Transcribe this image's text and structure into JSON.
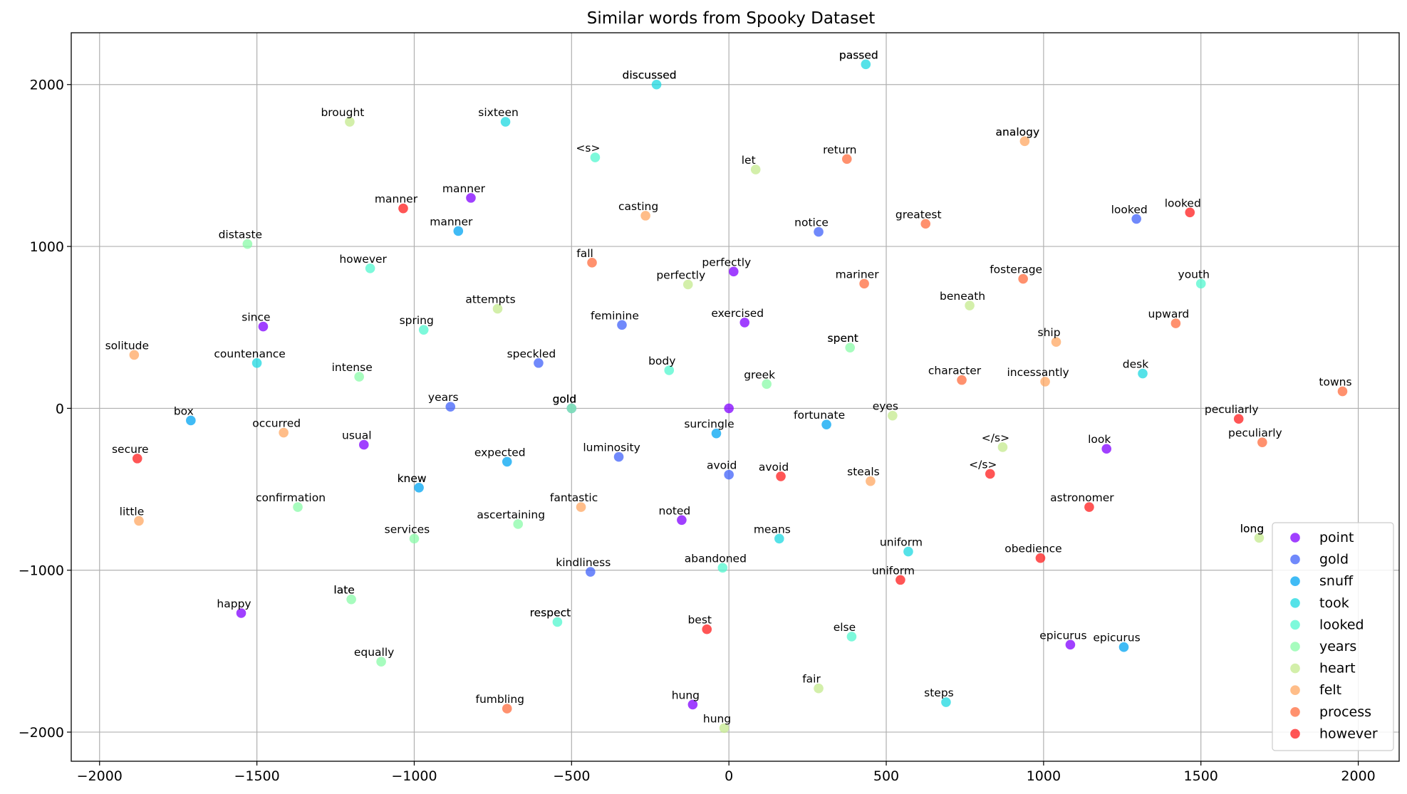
{
  "chart_data": {
    "type": "scatter",
    "title": "Similar words from Spooky Dataset",
    "xlabel": "",
    "ylabel": "",
    "xlim": [
      -2090,
      2130
    ],
    "ylim": [
      -2180,
      2320
    ],
    "xticks": [
      -2000,
      -1500,
      -1000,
      -500,
      0,
      500,
      1000,
      1500,
      2000
    ],
    "yticks": [
      2000,
      1000,
      0,
      -1000,
      -2000
    ],
    "tick_labels_x": [
      "−2000",
      "−1500",
      "−1000",
      "−500",
      "0",
      "500",
      "1000",
      "1500",
      "2000"
    ],
    "tick_labels_y": [
      "2000",
      "1000",
      "0",
      "−1000",
      "−2000"
    ],
    "grid": true,
    "legend": "bottom-right",
    "series": [
      {
        "name": "point",
        "color": "#8000ff",
        "label_color": "#777777",
        "points": [
          {
            "x": 0,
            "y": 0,
            "label": ""
          },
          {
            "x": -820,
            "y": 1300,
            "label": "manner"
          },
          {
            "x": 15,
            "y": 845,
            "label": "perfectly"
          },
          {
            "x": -1480,
            "y": 505,
            "label": "since"
          },
          {
            "x": 50,
            "y": 530,
            "label": "exercised"
          },
          {
            "x": -1160,
            "y": -225,
            "label": "usual"
          },
          {
            "x": 1200,
            "y": -250,
            "label": "look"
          },
          {
            "x": -150,
            "y": -690,
            "label": "noted"
          },
          {
            "x": -1550,
            "y": -1265,
            "label": "happy"
          },
          {
            "x": 1085,
            "y": -1460,
            "label": "epicurus"
          },
          {
            "x": -115,
            "y": -1830,
            "label": "hung"
          }
        ]
      },
      {
        "name": "gold",
        "color": "#4062fa",
        "label_color": "#777777",
        "points": [
          {
            "x": -500,
            "y": 0,
            "label": "gold"
          },
          {
            "x": 285,
            "y": 1090,
            "label": "notice"
          },
          {
            "x": 1295,
            "y": 1170,
            "label": "looked"
          },
          {
            "x": -340,
            "y": 515,
            "label": "feminine"
          },
          {
            "x": -605,
            "y": 280,
            "label": "speckled"
          },
          {
            "x": -885,
            "y": 10,
            "label": "years"
          },
          {
            "x": -350,
            "y": -300,
            "label": "luminosity"
          },
          {
            "x": 0,
            "y": -410,
            "label": "avoid"
          },
          {
            "x": -440,
            "y": -1010,
            "label": "kindliness"
          }
        ]
      },
      {
        "name": "snuff",
        "color": "#00a4f2",
        "label_color": "#777777",
        "points": [
          {
            "x": -985,
            "y": -490,
            "label": "knew"
          },
          {
            "x": -860,
            "y": 1095,
            "label": "manner"
          },
          {
            "x": -1710,
            "y": -75,
            "label": "box"
          },
          {
            "x": -40,
            "y": -155,
            "label": "surcingle"
          },
          {
            "x": 310,
            "y": -100,
            "label": "fortunate"
          },
          {
            "x": -705,
            "y": -330,
            "label": "expected"
          },
          {
            "x": 1255,
            "y": -1475,
            "label": "epicurus"
          }
        ]
      },
      {
        "name": "took",
        "color": "#1cd8e0",
        "label_color": "#777777",
        "points": [
          {
            "x": 435,
            "y": 2125,
            "label": "passed"
          },
          {
            "x": -230,
            "y": 2000,
            "label": "discussed"
          },
          {
            "x": -710,
            "y": 1770,
            "label": "sixteen"
          },
          {
            "x": -1500,
            "y": 280,
            "label": "countenance"
          },
          {
            "x": 1315,
            "y": 215,
            "label": "desk"
          },
          {
            "x": 160,
            "y": -805,
            "label": "means"
          },
          {
            "x": 570,
            "y": -885,
            "label": "uniform"
          },
          {
            "x": 690,
            "y": -1815,
            "label": "steps"
          }
        ]
      },
      {
        "name": "looked",
        "color": "#52f7cf",
        "label_color": "#777777",
        "points": [
          {
            "x": -545,
            "y": -1320,
            "label": "respect"
          },
          {
            "x": -425,
            "y": 1550,
            "label": "<s>"
          },
          {
            "x": -1140,
            "y": 865,
            "label": "however"
          },
          {
            "x": 1500,
            "y": 770,
            "label": "youth"
          },
          {
            "x": -970,
            "y": 485,
            "label": "spring"
          },
          {
            "x": -190,
            "y": 235,
            "label": "body"
          },
          {
            "x": -20,
            "y": -985,
            "label": "abandoned"
          },
          {
            "x": 390,
            "y": -1410,
            "label": "else"
          }
        ]
      },
      {
        "name": "years",
        "color": "#8afba8",
        "label_color": "#777777",
        "points": [
          {
            "x": 385,
            "y": 375,
            "label": "spent"
          },
          {
            "x": -1200,
            "y": -1180,
            "label": "late"
          },
          {
            "x": -1530,
            "y": 1015,
            "label": "distaste"
          },
          {
            "x": -1175,
            "y": 195,
            "label": "intense"
          },
          {
            "x": 120,
            "y": 150,
            "label": "greek"
          },
          {
            "x": -500,
            "y": 0,
            "label": "gold"
          },
          {
            "x": -1370,
            "y": -610,
            "label": "confirmation"
          },
          {
            "x": -1000,
            "y": -805,
            "label": "services"
          },
          {
            "x": -670,
            "y": -715,
            "label": "ascertaining"
          },
          {
            "x": -1105,
            "y": -1565,
            "label": "equally"
          }
        ]
      },
      {
        "name": "heart",
        "color": "#c4e98d",
        "label_color": "#777777",
        "points": [
          {
            "x": 1685,
            "y": -800,
            "label": "long"
          },
          {
            "x": -1205,
            "y": 1770,
            "label": "brought"
          },
          {
            "x": 85,
            "y": 1475,
            "label": "let"
          },
          {
            "x": -130,
            "y": 765,
            "label": "perfectly"
          },
          {
            "x": -735,
            "y": 615,
            "label": "attempts"
          },
          {
            "x": 765,
            "y": 635,
            "label": "beneath"
          },
          {
            "x": 520,
            "y": -45,
            "label": "eyes"
          },
          {
            "x": 870,
            "y": -240,
            "label": "</s>"
          },
          {
            "x": 285,
            "y": -1730,
            "label": "fair"
          },
          {
            "x": -15,
            "y": -1975,
            "label": "hung"
          }
        ]
      },
      {
        "name": "felt",
        "color": "#ffa762",
        "label_color": "#777777",
        "points": [
          {
            "x": 940,
            "y": 1650,
            "label": "analogy"
          },
          {
            "x": -265,
            "y": 1190,
            "label": "casting"
          },
          {
            "x": -1890,
            "y": 330,
            "label": "solitude"
          },
          {
            "x": 1040,
            "y": 410,
            "label": "ship"
          },
          {
            "x": 1005,
            "y": 165,
            "label": "incessantly"
          },
          {
            "x": -1415,
            "y": -150,
            "label": "occurred"
          },
          {
            "x": 450,
            "y": -450,
            "label": "steals"
          },
          {
            "x": -470,
            "y": -610,
            "label": "fantastic"
          },
          {
            "x": -1875,
            "y": -695,
            "label": "little"
          }
        ]
      },
      {
        "name": "process",
        "color": "#ff6c3e",
        "label_color": "#777777",
        "points": [
          {
            "x": 375,
            "y": 1540,
            "label": "return"
          },
          {
            "x": 625,
            "y": 1140,
            "label": "greatest"
          },
          {
            "x": -435,
            "y": 900,
            "label": "fall"
          },
          {
            "x": 430,
            "y": 770,
            "label": "mariner"
          },
          {
            "x": 935,
            "y": 800,
            "label": "fosterage"
          },
          {
            "x": 1420,
            "y": 525,
            "label": "upward"
          },
          {
            "x": 740,
            "y": 175,
            "label": "character"
          },
          {
            "x": 1950,
            "y": 105,
            "label": "towns"
          },
          {
            "x": 1695,
            "y": -210,
            "label": "peculiarly"
          },
          {
            "x": -705,
            "y": -1855,
            "label": "fumbling"
          }
        ]
      },
      {
        "name": "however",
        "color": "#ff1c1c",
        "label_color": "#777777",
        "points": [
          {
            "x": 1465,
            "y": 1210,
            "label": "looked"
          },
          {
            "x": -1035,
            "y": 1235,
            "label": "manner"
          },
          {
            "x": 1620,
            "y": -65,
            "label": "peculiarly"
          },
          {
            "x": -1880,
            "y": -310,
            "label": "secure"
          },
          {
            "x": 165,
            "y": -420,
            "label": "avoid"
          },
          {
            "x": 830,
            "y": -405,
            "label": "</s>"
          },
          {
            "x": 1145,
            "y": -610,
            "label": "astronomer"
          },
          {
            "x": 990,
            "y": -925,
            "label": "obedience"
          },
          {
            "x": 545,
            "y": -1060,
            "label": "uniform"
          },
          {
            "x": -70,
            "y": -1365,
            "label": "best"
          }
        ]
      }
    ],
    "query_labels": [
      {
        "x": 435,
        "y": 2125,
        "label": "passed"
      },
      {
        "x": -230,
        "y": 2000,
        "label": "discussed"
      },
      {
        "x": 940,
        "y": 1650,
        "label": "analogy"
      },
      {
        "x": 385,
        "y": 375,
        "label": "spent"
      },
      {
        "x": -500,
        "y": 0,
        "label": "gold"
      },
      {
        "x": -985,
        "y": -490,
        "label": "knew"
      },
      {
        "x": 1685,
        "y": -800,
        "label": "long"
      },
      {
        "x": -1200,
        "y": -1180,
        "label": "late"
      },
      {
        "x": -545,
        "y": -1320,
        "label": "respect"
      }
    ]
  }
}
